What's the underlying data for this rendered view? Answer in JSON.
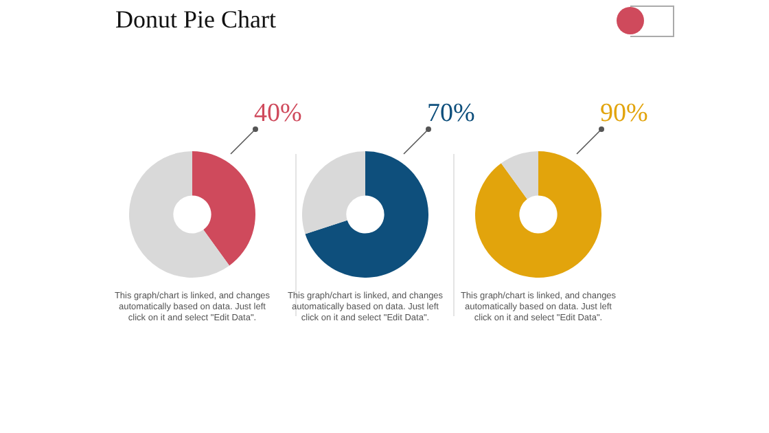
{
  "chart_data": [
    {
      "type": "donut",
      "title": "Donut Pie Chart",
      "categories": [
        null,
        null
      ],
      "values": [
        40,
        60
      ],
      "colors": [
        "#cf4a5c",
        "#d9d9d9"
      ],
      "value_labels": [
        "40%",
        null
      ],
      "legend": false,
      "annotations": [
        "This graph/chart is linked, and changes automatically based on data. Just left click on it and select \"Edit Data\"."
      ]
    },
    {
      "type": "donut",
      "categories": [
        null,
        null
      ],
      "values": [
        70,
        30
      ],
      "colors": [
        "#0e4f7c",
        "#d9d9d9"
      ],
      "value_labels": [
        "70%",
        null
      ],
      "legend": false,
      "annotations": [
        "This graph/chart is linked, and changes automatically based on data. Just left click on it and select \"Edit Data\"."
      ]
    },
    {
      "type": "donut",
      "categories": [
        null,
        null
      ],
      "values": [
        90,
        10
      ],
      "colors": [
        "#e2a40c",
        "#d9d9d9"
      ],
      "value_labels": [
        "90%",
        null
      ],
      "legend": false,
      "annotations": [
        "This graph/chart is linked, and changes automatically based on data. Just left click on it and select \"Edit Data\"."
      ]
    }
  ]
}
